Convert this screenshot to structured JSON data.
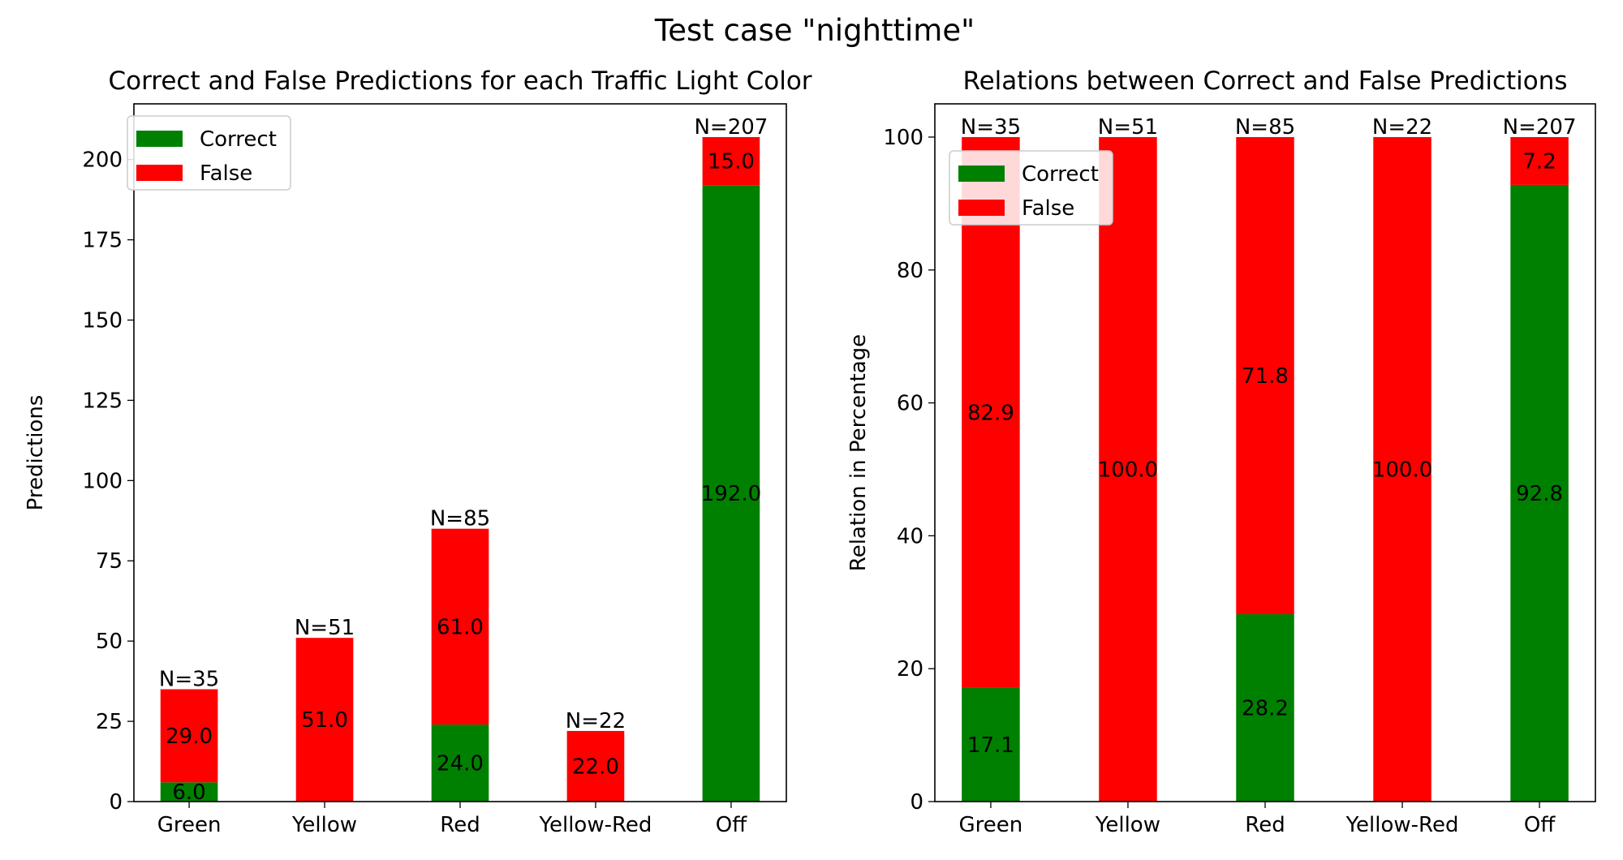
{
  "figure": {
    "suptitle": "Test case \"nighttime\""
  },
  "colors": {
    "correct": "#008000",
    "false": "#ff0000"
  },
  "chart_data": [
    {
      "type": "bar",
      "stacked": true,
      "title": "Correct and False Predictions for each Traffic Light Color",
      "xlabel": "",
      "ylabel": "Predictions",
      "categories": [
        "Green",
        "Yellow",
        "Red",
        "Yellow-Red",
        "Off"
      ],
      "series": [
        {
          "name": "Correct",
          "values": [
            6,
            0,
            24,
            0,
            192
          ]
        },
        {
          "name": "False",
          "values": [
            29,
            51,
            61,
            22,
            15
          ]
        }
      ],
      "segment_labels": {
        "Correct": [
          "6.0",
          "",
          "24.0",
          "",
          "192.0"
        ],
        "False": [
          "29.0",
          "51.0",
          "61.0",
          "22.0",
          "15.0"
        ]
      },
      "totals": [
        "N=35",
        "N=51",
        "N=85",
        "N=22",
        "N=207"
      ],
      "ylim": [
        0,
        217.35
      ],
      "yticks": [
        0,
        25,
        50,
        75,
        100,
        125,
        150,
        175,
        200
      ],
      "grid": false,
      "legend": {
        "position": "top-left",
        "entries": [
          "Correct",
          "False"
        ]
      }
    },
    {
      "type": "bar",
      "stacked": true,
      "title": "Relations between Correct and False Predictions",
      "xlabel": "",
      "ylabel": "Relation in Percentage",
      "categories": [
        "Green",
        "Yellow",
        "Red",
        "Yellow-Red",
        "Off"
      ],
      "series": [
        {
          "name": "Correct",
          "values": [
            17.1,
            0,
            28.2,
            0,
            92.8
          ]
        },
        {
          "name": "False",
          "values": [
            82.9,
            100.0,
            71.8,
            100.0,
            7.2
          ]
        }
      ],
      "segment_labels": {
        "Correct": [
          "17.1",
          "",
          "28.2",
          "",
          "92.8"
        ],
        "False": [
          "82.9",
          "100.0",
          "71.8",
          "100.0",
          "7.2"
        ]
      },
      "totals": [
        "N=35",
        "N=51",
        "N=85",
        "N=22",
        "N=207"
      ],
      "ylim": [
        0,
        105
      ],
      "yticks": [
        0,
        20,
        40,
        60,
        80,
        100
      ],
      "grid": false,
      "legend": {
        "position": "top-left",
        "entries": [
          "Correct",
          "False"
        ]
      }
    }
  ]
}
